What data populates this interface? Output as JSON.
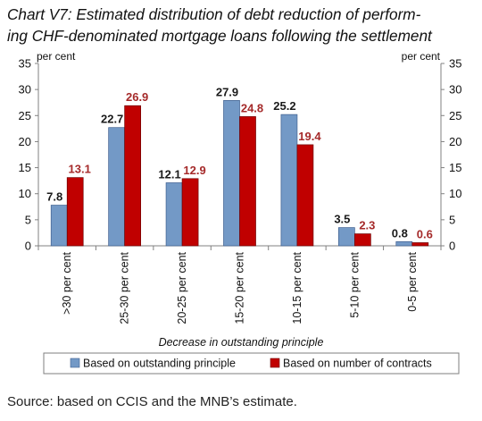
{
  "title_lines": [
    "Chart V7: Estimated distribution of debt reduction of perform-",
    "ing CHF-denominated mortgage loans following the settlement"
  ],
  "source": "Source: based on CCIS and the MNB’s estimate.",
  "chart_data": {
    "type": "bar",
    "title": "Chart V7: Estimated distribution of debt reduction of performing CHF-denominated mortgage loans following the settlement",
    "categories": [
      ">30 per cent",
      "25-30 per cent",
      "20-25 per cent",
      "15-20 per cent",
      "10-15 per cent",
      "5-10 per cent",
      "0-5 per cent"
    ],
    "series": [
      {
        "name": "Based on outstanding principle",
        "values": [
          7.8,
          22.7,
          12.1,
          27.9,
          25.2,
          3.5,
          0.8
        ],
        "color": "#7399C6",
        "label_color": "#1a1a1a"
      },
      {
        "name": "Based on number of contracts",
        "values": [
          13.1,
          26.9,
          12.9,
          24.8,
          19.4,
          2.3,
          0.6
        ],
        "color": "#C00000",
        "label_color": "#A52A2A"
      }
    ],
    "xlabel": "Decrease in outstanding principle",
    "ylabel_left": "per cent",
    "ylabel_right": "per cent",
    "ylim": [
      0,
      35
    ],
    "yticks": [
      0,
      5,
      10,
      15,
      20,
      25,
      30,
      35
    ],
    "grid": false,
    "legend_position": "bottom"
  }
}
